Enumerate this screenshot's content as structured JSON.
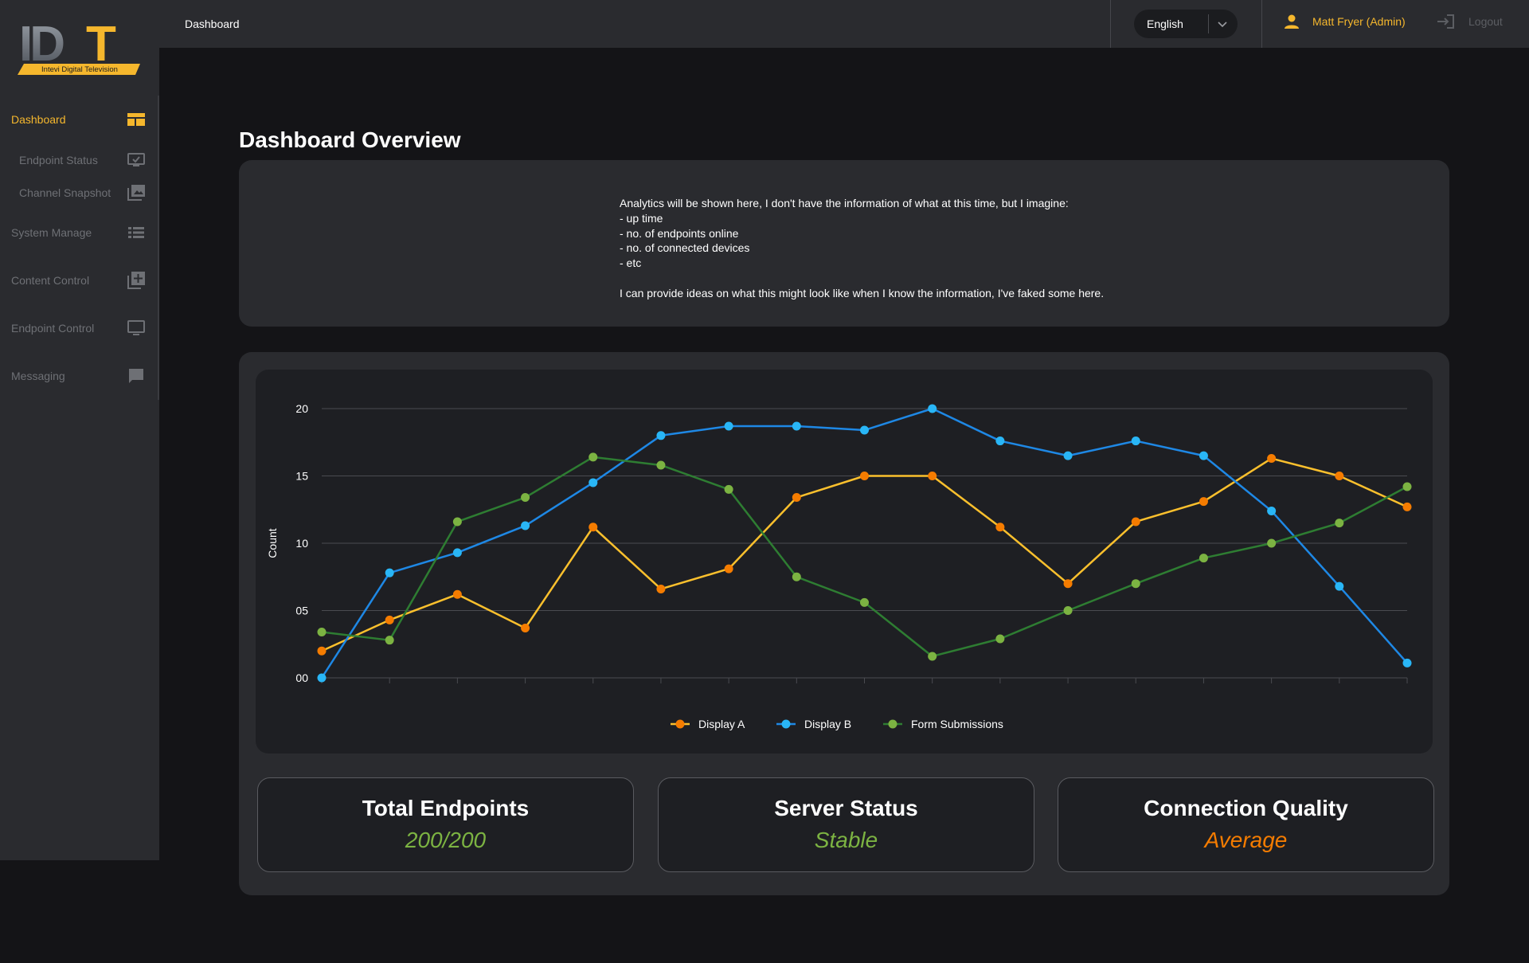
{
  "app": {
    "logo_text": "IDT",
    "logo_subtitle": "Intevi Digital Television"
  },
  "sidebar": {
    "items": [
      {
        "label": "Dashboard",
        "icon": "dashboard-icon",
        "active": true
      },
      {
        "label": "Endpoint Status",
        "icon": "monitor-check-icon"
      },
      {
        "label": "Channel Snapshot",
        "icon": "image-gallery-icon"
      },
      {
        "label": "System Manage",
        "icon": "list-icon"
      },
      {
        "label": "Content Control",
        "icon": "add-box-icon"
      },
      {
        "label": "Endpoint Control",
        "icon": "display-icon"
      },
      {
        "label": "Messaging",
        "icon": "chat-icon"
      }
    ]
  },
  "header": {
    "breadcrumb": "Dashboard",
    "language": "English",
    "user_name": "Matt Fryer (Admin)",
    "logout_label": "Logout"
  },
  "main": {
    "title": "Dashboard Overview",
    "info_lines": [
      "Analytics will be shown here, I don't have the information of what at this time, but I imagine:",
      "- up time",
      "- no. of endpoints online",
      "- no. of connected devices",
      "- etc",
      "",
      "I can provide ideas on what this might look like when I know the information, I've faked some here."
    ]
  },
  "stats": [
    {
      "title": "Total Endpoints",
      "value": "200/200",
      "color": "#7cb342"
    },
    {
      "title": "Server Status",
      "value": "Stable",
      "color": "#7cb342"
    },
    {
      "title": "Connection Quality",
      "value": "Average",
      "color": "#f57c00"
    }
  ],
  "colors": {
    "accent": "#f5b72d"
  },
  "chart_data": {
    "type": "line",
    "x": [
      1,
      2,
      3,
      4,
      5,
      6,
      7,
      8,
      9,
      10,
      11,
      12,
      13,
      14,
      15,
      16,
      17
    ],
    "ylabel": "Count",
    "ylim": [
      0,
      20
    ],
    "yticks": [
      "00",
      "05",
      "10",
      "15",
      "20"
    ],
    "grid": true,
    "legend_position": "bottom",
    "series": [
      {
        "name": "Display A",
        "line_color": "#fbc02d",
        "marker_color": "#f57c00",
        "values": [
          2,
          4.3,
          6.2,
          3.7,
          11.2,
          6.6,
          8.1,
          13.4,
          15,
          15,
          11.2,
          7,
          11.6,
          13.1,
          16.3,
          15,
          12.7
        ]
      },
      {
        "name": "Display B",
        "line_color": "#1e88e5",
        "marker_color": "#29b6f6",
        "values": [
          0,
          7.8,
          9.3,
          11.3,
          14.5,
          18,
          18.7,
          18.7,
          18.4,
          20,
          17.6,
          16.5,
          17.6,
          16.5,
          12.4,
          6.8,
          1.1
        ]
      },
      {
        "name": "Form Submissions",
        "line_color": "#2e7d32",
        "marker_color": "#7cb342",
        "values": [
          3.4,
          2.8,
          11.6,
          13.4,
          16.4,
          15.8,
          14,
          7.5,
          5.6,
          1.6,
          2.9,
          5,
          7,
          8.9,
          10,
          11.5,
          14.2
        ]
      }
    ]
  }
}
